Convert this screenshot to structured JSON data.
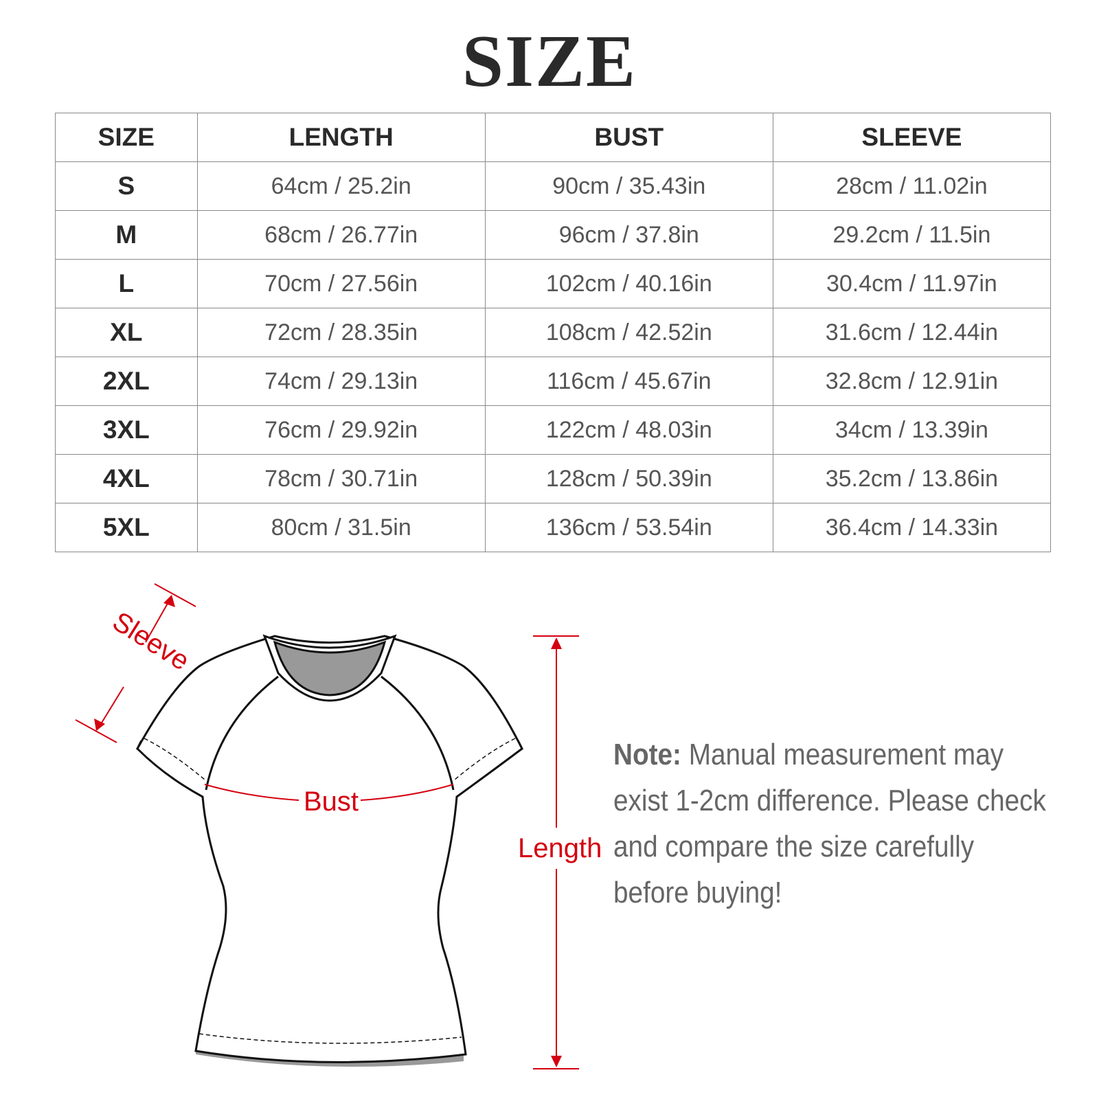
{
  "title": "SIZE",
  "table": {
    "headers": [
      "SIZE",
      "LENGTH",
      "BUST",
      "SLEEVE"
    ],
    "rows": [
      [
        "S",
        "64cm / 25.2in",
        "90cm / 35.43in",
        "28cm / 11.02in"
      ],
      [
        "M",
        "68cm / 26.77in",
        "96cm / 37.8in",
        "29.2cm / 11.5in"
      ],
      [
        "L",
        "70cm / 27.56in",
        "102cm / 40.16in",
        "30.4cm / 11.97in"
      ],
      [
        "XL",
        "72cm / 28.35in",
        "108cm / 42.52in",
        "31.6cm / 12.44in"
      ],
      [
        "2XL",
        "74cm / 29.13in",
        "116cm / 45.67in",
        "32.8cm / 12.91in"
      ],
      [
        "3XL",
        "76cm / 29.92in",
        "122cm / 48.03in",
        "34cm / 13.39in"
      ],
      [
        "4XL",
        "78cm / 30.71in",
        "128cm / 50.39in",
        "35.2cm / 13.86in"
      ],
      [
        "5XL",
        "80cm / 31.5in",
        "136cm / 53.54in",
        "36.4cm / 14.33in"
      ]
    ]
  },
  "diagram": {
    "sleeve_label": "Sleeve",
    "bust_label": "Bust",
    "length_label": "Length",
    "accent_color": "#d40010"
  },
  "note": {
    "label": "Note:",
    "text": " Manual measurement may exist 1-2cm difference. Please check and compare the size carefully before buying!"
  }
}
